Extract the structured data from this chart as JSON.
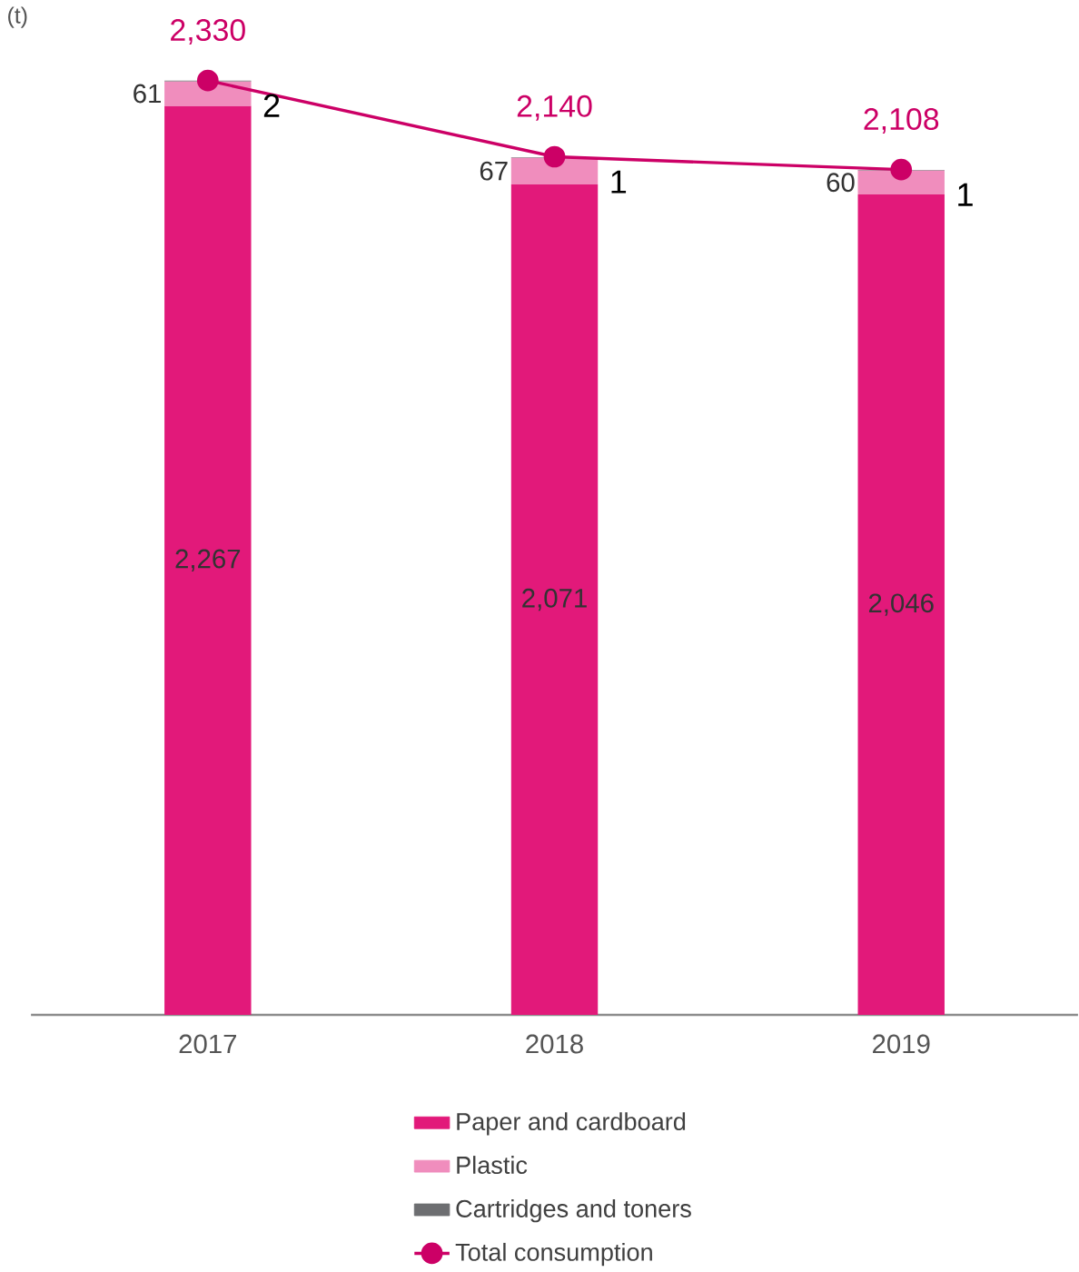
{
  "chart_data": {
    "type": "bar",
    "stacked": true,
    "ylabel": "(t)",
    "categories": [
      "2017",
      "2018",
      "2019"
    ],
    "legend": "bottom",
    "series": [
      {
        "name": "Paper and cardboard",
        "color": "#e2197a",
        "values": [
          2267,
          2071,
          2046
        ],
        "value_labels": [
          "2,267",
          "2,071",
          "2,046"
        ]
      },
      {
        "name": "Plastic",
        "color": "#f08dbd",
        "values": [
          61,
          67,
          60
        ],
        "value_labels": [
          "61",
          "67",
          "60"
        ]
      },
      {
        "name": "Cartridges and toners",
        "color": "#6d6e71",
        "values": [
          2,
          1,
          1
        ],
        "value_labels": [
          "2",
          "1",
          "1"
        ]
      },
      {
        "name": "Total consumption",
        "type": "line",
        "marker": "circle",
        "color": "#cc0066",
        "values": [
          2330,
          2140,
          2108
        ],
        "value_labels": [
          "2,330",
          "2,140",
          "2,108"
        ]
      }
    ]
  }
}
